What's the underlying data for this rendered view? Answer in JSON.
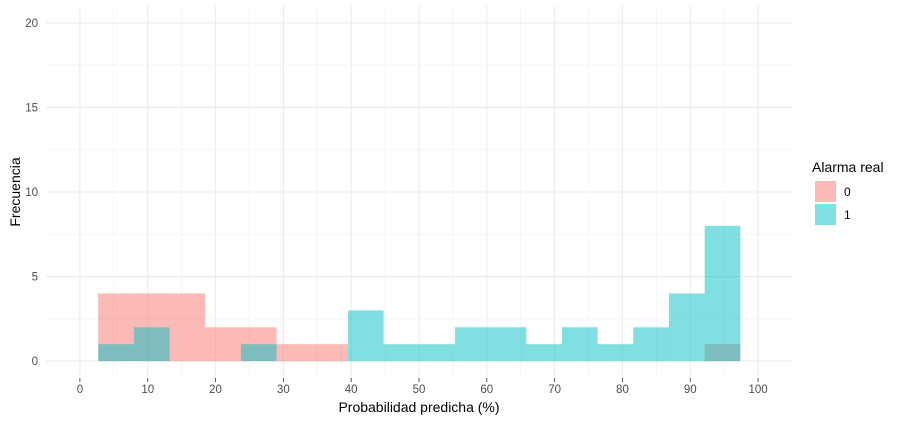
{
  "chart_data": {
    "type": "histogram",
    "xlabel": "Probabilidad predicha (%)",
    "ylabel": "Frecuencia",
    "xlim": [
      -5,
      105
    ],
    "ylim": [
      -1,
      21
    ],
    "x_ticks": [
      0,
      10,
      20,
      30,
      40,
      50,
      60,
      70,
      80,
      90,
      100
    ],
    "x_tick_labels": [
      "0",
      "10",
      "20",
      "30",
      "40",
      "50",
      "60",
      "70",
      "80",
      "90",
      "100"
    ],
    "y_ticks": [
      0,
      5,
      10,
      15,
      20
    ],
    "y_tick_labels": [
      "0",
      "5",
      "10",
      "15",
      "20"
    ],
    "bin_width": 5.26,
    "bin_starts": [
      2.7,
      7.96,
      13.22,
      18.48,
      23.74,
      29.0,
      34.26,
      39.52,
      44.78,
      50.04,
      55.3,
      60.56,
      65.82,
      71.08,
      76.34,
      81.6,
      86.86,
      92.12
    ],
    "legend_title": "Alarma real",
    "legend_position": "right",
    "grid": true,
    "overlap_color": "#7FB3AF",
    "series": [
      {
        "name": "0",
        "color": "#F8766D",
        "counts": [
          4,
          4,
          4,
          2,
          2,
          1,
          1,
          0,
          0,
          0,
          0,
          0,
          0,
          0,
          0,
          0,
          0,
          1
        ]
      },
      {
        "name": "1",
        "color": "#00BFC4",
        "counts": [
          1,
          2,
          0,
          0,
          1,
          0,
          0,
          3,
          1,
          1,
          2,
          2,
          1,
          2,
          1,
          2,
          4,
          8
        ]
      }
    ]
  }
}
